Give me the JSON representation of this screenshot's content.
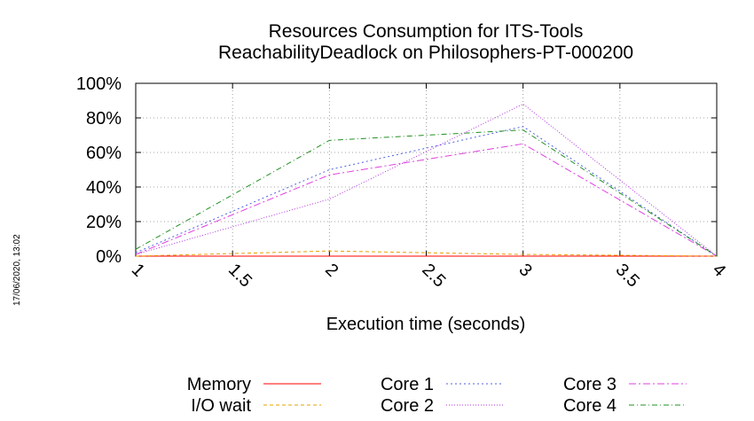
{
  "timestamp": "17/06/2020, 13:02",
  "chart_data": {
    "type": "line",
    "title": "Resources Consumption for ITS-Tools",
    "subtitle": "ReachabilityDeadlock on Philosophers-PT-000200",
    "xlabel": "Execution time (seconds)",
    "ylabel": "",
    "xlim": [
      1,
      4
    ],
    "ylim": [
      0,
      100
    ],
    "x_ticks": [
      "1",
      "1.5",
      "2",
      "2.5",
      "3",
      "3.5",
      "4"
    ],
    "y_ticks": [
      "0%",
      "20%",
      "40%",
      "60%",
      "80%",
      "100%"
    ],
    "grid": true,
    "legend_position": "bottom",
    "x": [
      1,
      2,
      3,
      4
    ],
    "series": [
      {
        "name": "Memory",
        "color": "#ff0000",
        "dash": "",
        "values": [
          0,
          0,
          0,
          0
        ]
      },
      {
        "name": "I/O wait",
        "color": "#e6a000",
        "dash": "4,3",
        "values": [
          0,
          3,
          1,
          0
        ]
      },
      {
        "name": "Core 1",
        "color": "#5060e0",
        "dash": "2,3",
        "values": [
          2,
          50,
          75,
          0
        ]
      },
      {
        "name": "Core 2",
        "color": "#b030e0",
        "dash": "1,2",
        "values": [
          1,
          33,
          88,
          0
        ]
      },
      {
        "name": "Core 3",
        "color": "#e040e0",
        "dash": "8,3,2,3",
        "values": [
          1,
          47,
          65,
          0
        ]
      },
      {
        "name": "Core 4",
        "color": "#209020",
        "dash": "6,3,1,3",
        "values": [
          4,
          67,
          73,
          0
        ]
      }
    ]
  }
}
